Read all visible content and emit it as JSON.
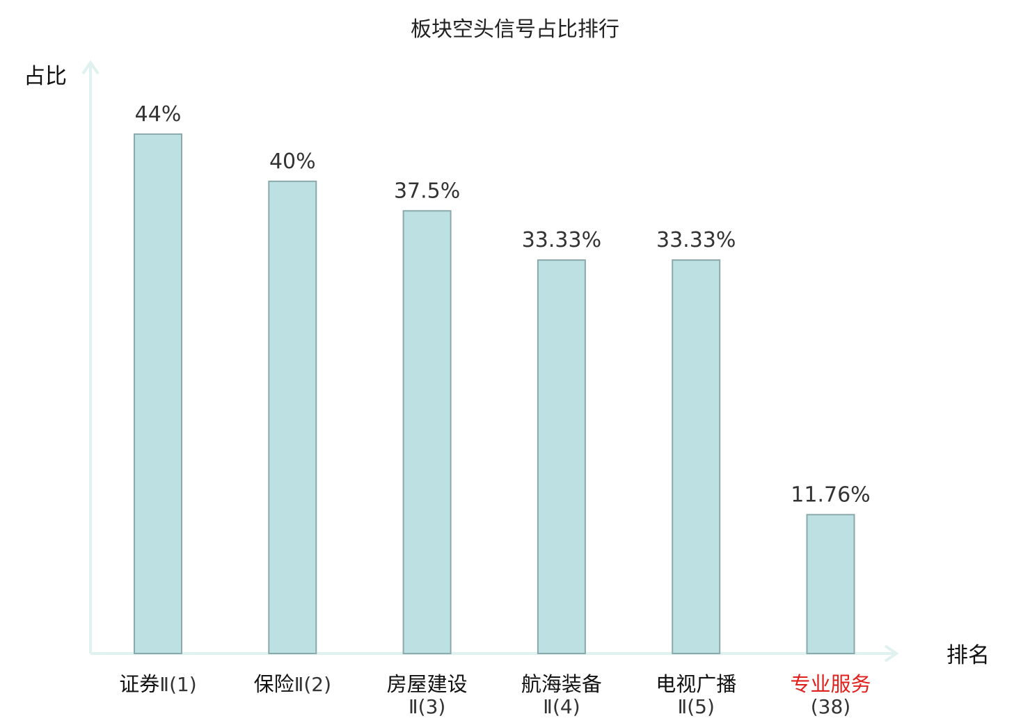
{
  "chart_data": {
    "type": "bar",
    "title": "板块空头信号占比排行",
    "ylabel": "占比",
    "xlabel": "排名",
    "ylim": [
      0,
      50
    ],
    "grid": false,
    "categories": [
      {
        "name": "证券",
        "rank": "Ⅱ(1)",
        "highlight": false
      },
      {
        "name": "保险",
        "rank": "Ⅱ(2)",
        "highlight": false
      },
      {
        "name": "房屋建设",
        "rank": "Ⅱ(3)",
        "highlight": false
      },
      {
        "name": "航海装备",
        "rank": "Ⅱ(4)",
        "highlight": false
      },
      {
        "name": "电视广播",
        "rank": "Ⅱ(5)",
        "highlight": false
      },
      {
        "name": "专业服务",
        "rank": "(38)",
        "highlight": true
      }
    ],
    "values": [
      44,
      40,
      37.5,
      33.33,
      33.33,
      11.76
    ],
    "value_labels": [
      "44%",
      "40%",
      "37.5%",
      "33.33%",
      "33.33%",
      "11.76%"
    ],
    "colors": {
      "bar_fill": "#bde0e3",
      "bar_stroke": "#8aa9ab",
      "axis": "#dff2ef",
      "highlight": "#e0201c"
    }
  }
}
